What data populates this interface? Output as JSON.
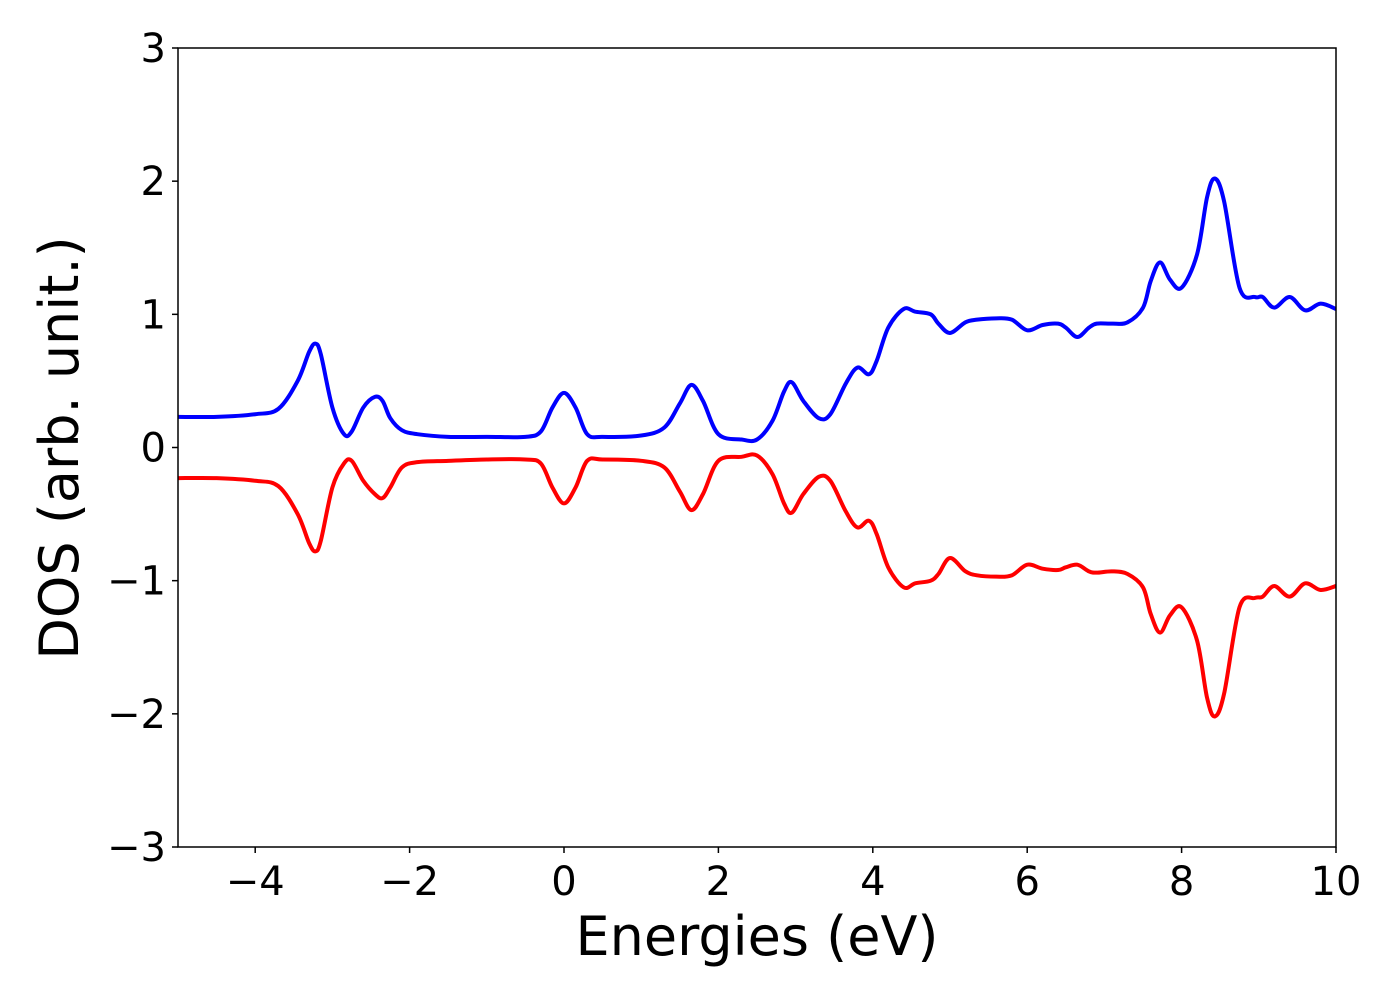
{
  "chart_data": {
    "type": "line",
    "title": "",
    "xlabel": "Energies (eV)",
    "ylabel": "DOS (arb. unit.)",
    "xlim": [
      -5,
      10
    ],
    "ylim": [
      -3,
      3
    ],
    "xticks": [
      -4,
      -2,
      0,
      2,
      4,
      6,
      8,
      10
    ],
    "xtick_labels": [
      "−4",
      "−2",
      "0",
      "2",
      "4",
      "6",
      "8",
      "10"
    ],
    "yticks": [
      3,
      2,
      1,
      0,
      -1,
      -2,
      -3
    ],
    "ytick_labels": [
      "3",
      "2",
      "1",
      "0",
      "−1",
      "−2",
      "−3"
    ],
    "grid": false,
    "legend": "none",
    "series": [
      {
        "color": "#0000ff",
        "x": [
          -5.0,
          -4.5,
          -4.0,
          -3.7,
          -3.45,
          -3.3,
          -3.22,
          -3.15,
          -3.0,
          -2.85,
          -2.75,
          -2.6,
          -2.45,
          -2.35,
          -2.25,
          -2.1,
          -1.9,
          -1.5,
          -1.0,
          -0.5,
          -0.3,
          -0.15,
          0.0,
          0.15,
          0.3,
          0.5,
          1.0,
          1.3,
          1.5,
          1.65,
          1.8,
          2.0,
          2.3,
          2.5,
          2.7,
          2.85,
          2.95,
          3.1,
          3.3,
          3.45,
          3.65,
          3.8,
          3.95,
          4.05,
          4.2,
          4.4,
          4.55,
          4.75,
          4.85,
          5.0,
          5.2,
          5.35,
          5.6,
          5.8,
          6.0,
          6.2,
          6.4,
          6.5,
          6.65,
          6.8,
          6.9,
          7.1,
          7.3,
          7.5,
          7.6,
          7.72,
          7.85,
          8.0,
          8.2,
          8.33,
          8.43,
          8.55,
          8.75,
          8.95,
          9.05,
          9.2,
          9.4,
          9.6,
          9.8,
          10.0
        ],
        "y": [
          0.23,
          0.23,
          0.25,
          0.29,
          0.5,
          0.72,
          0.78,
          0.7,
          0.3,
          0.1,
          0.12,
          0.3,
          0.38,
          0.35,
          0.22,
          0.13,
          0.1,
          0.08,
          0.08,
          0.08,
          0.12,
          0.3,
          0.41,
          0.3,
          0.1,
          0.08,
          0.09,
          0.15,
          0.33,
          0.47,
          0.35,
          0.1,
          0.06,
          0.06,
          0.2,
          0.42,
          0.49,
          0.35,
          0.22,
          0.25,
          0.48,
          0.6,
          0.55,
          0.65,
          0.9,
          1.04,
          1.02,
          1.0,
          0.93,
          0.86,
          0.94,
          0.96,
          0.97,
          0.96,
          0.88,
          0.92,
          0.93,
          0.9,
          0.83,
          0.9,
          0.93,
          0.93,
          0.94,
          1.05,
          1.25,
          1.39,
          1.26,
          1.2,
          1.45,
          1.88,
          2.02,
          1.85,
          1.2,
          1.13,
          1.13,
          1.05,
          1.13,
          1.03,
          1.08,
          1.04
        ]
      },
      {
        "color": "#ff0000",
        "x": [
          -5.0,
          -4.5,
          -4.0,
          -3.7,
          -3.45,
          -3.3,
          -3.22,
          -3.15,
          -3.0,
          -2.85,
          -2.75,
          -2.6,
          -2.45,
          -2.35,
          -2.25,
          -2.1,
          -1.9,
          -1.5,
          -1.0,
          -0.5,
          -0.3,
          -0.15,
          0.0,
          0.15,
          0.3,
          0.5,
          1.0,
          1.3,
          1.5,
          1.65,
          1.8,
          2.0,
          2.3,
          2.5,
          2.7,
          2.85,
          2.95,
          3.1,
          3.3,
          3.45,
          3.65,
          3.8,
          3.95,
          4.05,
          4.2,
          4.4,
          4.55,
          4.75,
          4.85,
          5.0,
          5.2,
          5.35,
          5.6,
          5.8,
          6.0,
          6.2,
          6.4,
          6.5,
          6.65,
          6.8,
          6.9,
          7.1,
          7.3,
          7.5,
          7.6,
          7.72,
          7.85,
          8.0,
          8.2,
          8.33,
          8.43,
          8.55,
          8.75,
          8.95,
          9.05,
          9.2,
          9.4,
          9.6,
          9.8,
          10.0
        ],
        "y": [
          -0.23,
          -0.23,
          -0.25,
          -0.29,
          -0.5,
          -0.72,
          -0.78,
          -0.7,
          -0.3,
          -0.12,
          -0.1,
          -0.25,
          -0.35,
          -0.38,
          -0.3,
          -0.15,
          -0.11,
          -0.1,
          -0.09,
          -0.09,
          -0.12,
          -0.3,
          -0.42,
          -0.3,
          -0.1,
          -0.09,
          -0.1,
          -0.15,
          -0.33,
          -0.47,
          -0.35,
          -0.1,
          -0.07,
          -0.06,
          -0.2,
          -0.42,
          -0.49,
          -0.35,
          -0.22,
          -0.25,
          -0.48,
          -0.6,
          -0.55,
          -0.65,
          -0.9,
          -1.05,
          -1.02,
          -1.0,
          -0.95,
          -0.83,
          -0.93,
          -0.96,
          -0.97,
          -0.96,
          -0.88,
          -0.91,
          -0.92,
          -0.9,
          -0.88,
          -0.93,
          -0.94,
          -0.93,
          -0.95,
          -1.05,
          -1.25,
          -1.39,
          -1.26,
          -1.2,
          -1.45,
          -1.88,
          -2.02,
          -1.85,
          -1.2,
          -1.13,
          -1.12,
          -1.04,
          -1.12,
          -1.02,
          -1.07,
          -1.04
        ]
      }
    ]
  }
}
